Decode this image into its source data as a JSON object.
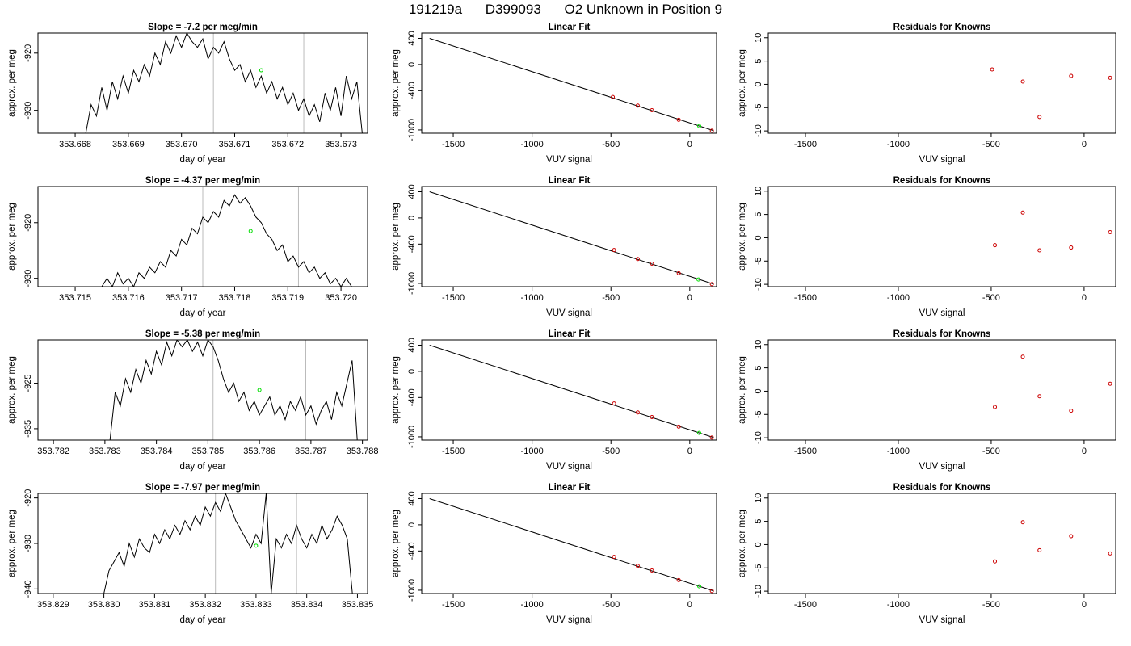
{
  "header": {
    "run_id": "191219a",
    "sample_id": "D399093",
    "description": "O2 Unknown in Position  9"
  },
  "colors": {
    "line": "#000000",
    "marker_known": "#cc0000",
    "marker_unknown": "#00dd00",
    "vline": "#bbbbbb",
    "axis": "#000000"
  },
  "chart_data": [
    {
      "type": "line",
      "title": "Slope =  -7.2  per meg/min",
      "xlabel": "day of year",
      "ylabel": "approx. per meg",
      "xlim": [
        353.6673,
        353.6735
      ],
      "ylim": [
        -934,
        -916.5
      ],
      "xticks": [
        353.668,
        353.669,
        353.67,
        353.671,
        353.672,
        353.673
      ],
      "xtick_labels": [
        "353.668",
        "353.669",
        "353.670",
        "353.671",
        "353.672",
        "353.673"
      ],
      "yticks": [
        -930,
        -920
      ],
      "ytick_labels": [
        "-930",
        "-920"
      ],
      "vlines": [
        353.6706,
        353.6723
      ],
      "x": [
        353.6682,
        353.6683,
        353.6684,
        353.6685,
        353.6686,
        353.6687,
        353.6688,
        353.6689,
        353.669,
        353.6691,
        353.6692,
        353.6693,
        353.6694,
        353.6695,
        353.6696,
        353.6697,
        353.6698,
        353.6699,
        353.67,
        353.6701,
        353.6702,
        353.6703,
        353.6704,
        353.6705,
        353.6706,
        353.6707,
        353.6708,
        353.6709,
        353.671,
        353.6711,
        353.6712,
        353.6713,
        353.6714,
        353.6715,
        353.6716,
        353.6717,
        353.6718,
        353.6719,
        353.672,
        353.6721,
        353.6722,
        353.6723,
        353.6724,
        353.6725,
        353.6726,
        353.6727,
        353.6728,
        353.6729,
        353.673,
        353.6731,
        353.6732,
        353.6733,
        353.6734
      ],
      "y": [
        -934,
        -929,
        -931,
        -926,
        -930,
        -925,
        -928,
        -924,
        -927,
        -923,
        -925,
        -922,
        -924,
        -920,
        -922,
        -918,
        -920,
        -917,
        -919,
        -916.5,
        -918,
        -919,
        -917.5,
        -921,
        -919,
        -920,
        -918,
        -921,
        -923,
        -922,
        -925,
        -923,
        -926,
        -924,
        -927,
        -925,
        -928,
        -926,
        -929,
        -927,
        -930,
        -928,
        -931,
        -929,
        -932,
        -927,
        -930,
        -926,
        -931,
        -924,
        -928,
        -925,
        -934
      ],
      "unknown_point": {
        "x": 353.6715,
        "y": -923
      }
    },
    {
      "type": "line",
      "title": "Linear Fit",
      "xlabel": "VUV signal",
      "ylabel": "approx. per meg",
      "xlim": [
        -1700,
        170
      ],
      "ylim": [
        -1050,
        480
      ],
      "xticks": [
        -1500,
        -1000,
        -500,
        0
      ],
      "xtick_labels": [
        "-1500",
        "-1000",
        "-500",
        "0"
      ],
      "yticks": [
        400,
        0,
        -400,
        -1000
      ],
      "ytick_labels": [
        "400",
        "0",
        "-400",
        "-1000"
      ],
      "fit_line": {
        "x": [
          -1650,
          150
        ],
        "y": [
          400,
          -1010
        ]
      },
      "known_points": {
        "x": [
          -488,
          -330,
          -240,
          -70,
          140
        ],
        "y": [
          -497,
          -628,
          -698,
          -845,
          -1011
        ]
      },
      "unknown_point": {
        "x": 60,
        "y": -940
      }
    },
    {
      "type": "scatter",
      "title": "Residuals for Knowns",
      "xlabel": "VUV signal",
      "ylabel": "approx. per meg",
      "xlim": [
        -1700,
        170
      ],
      "ylim": [
        -10.5,
        11
      ],
      "xticks": [
        -1500,
        -1000,
        -500,
        0
      ],
      "xtick_labels": [
        "-1500",
        "-1000",
        "-500",
        "0"
      ],
      "yticks": [
        10,
        5,
        0,
        -5,
        -10
      ],
      "ytick_labels": [
        "10",
        "5",
        "0",
        "-5",
        "-10"
      ],
      "x": [
        -495,
        -330,
        -240,
        -70,
        140
      ],
      "y": [
        3.2,
        0.6,
        -7.0,
        1.8,
        1.4
      ]
    },
    {
      "type": "line",
      "title": "Slope =  -4.37  per meg/min",
      "xlabel": "day of year",
      "ylabel": "approx. per meg",
      "xlim": [
        353.7143,
        353.7205
      ],
      "ylim": [
        -931.5,
        -913.5
      ],
      "xticks": [
        353.715,
        353.716,
        353.717,
        353.718,
        353.719,
        353.72
      ],
      "xtick_labels": [
        "353.715",
        "353.716",
        "353.717",
        "353.718",
        "353.719",
        "353.720"
      ],
      "yticks": [
        -930,
        -920
      ],
      "ytick_labels": [
        "-930",
        "-920"
      ],
      "vlines": [
        353.7174,
        353.7192
      ],
      "x": [
        353.7155,
        353.7156,
        353.7157,
        353.7158,
        353.7159,
        353.716,
        353.7161,
        353.7162,
        353.7163,
        353.7164,
        353.7165,
        353.7166,
        353.7167,
        353.7168,
        353.7169,
        353.717,
        353.7171,
        353.7172,
        353.7173,
        353.7174,
        353.7175,
        353.7176,
        353.7177,
        353.7178,
        353.7179,
        353.718,
        353.7181,
        353.7182,
        353.7183,
        353.7184,
        353.7185,
        353.7186,
        353.7187,
        353.7188,
        353.7189,
        353.719,
        353.7191,
        353.7192,
        353.7193,
        353.7194,
        353.7195,
        353.7196,
        353.7197,
        353.7198,
        353.7199,
        353.72,
        353.7201,
        353.7202
      ],
      "y": [
        -931.5,
        -930,
        -931.5,
        -929,
        -931,
        -930,
        -931.5,
        -929,
        -930,
        -928,
        -929,
        -927,
        -928,
        -925,
        -926,
        -923,
        -924,
        -921,
        -922,
        -919,
        -920,
        -918,
        -919,
        -916,
        -917,
        -915,
        -916.5,
        -915.5,
        -917,
        -919,
        -920,
        -922,
        -923,
        -925,
        -924,
        -927,
        -926,
        -928,
        -927,
        -929,
        -928,
        -930,
        -929,
        -931,
        -930,
        -931.5,
        -930,
        -931.5
      ],
      "unknown_point": {
        "x": 353.7183,
        "y": -921.5
      }
    },
    {
      "type": "line",
      "title": "Linear Fit",
      "xlabel": "VUV signal",
      "ylabel": "approx. per meg",
      "xlim": [
        -1700,
        170
      ],
      "ylim": [
        -1050,
        480
      ],
      "xticks": [
        -1500,
        -1000,
        -500,
        0
      ],
      "xtick_labels": [
        "-1500",
        "-1000",
        "-500",
        "0"
      ],
      "yticks": [
        400,
        0,
        -400,
        -1000
      ],
      "ytick_labels": [
        "400",
        "0",
        "-400",
        "-1000"
      ],
      "fit_line": {
        "x": [
          -1650,
          150
        ],
        "y": [
          400,
          -1010
        ]
      },
      "known_points": {
        "x": [
          -480,
          -330,
          -240,
          -70,
          140
        ],
        "y": [
          -490,
          -628,
          -698,
          -845,
          -1011
        ]
      },
      "unknown_point": {
        "x": 55,
        "y": -940
      }
    },
    {
      "type": "scatter",
      "title": "Residuals for Knowns",
      "xlabel": "VUV signal",
      "ylabel": "approx. per meg",
      "xlim": [
        -1700,
        170
      ],
      "ylim": [
        -10.5,
        11
      ],
      "xticks": [
        -1500,
        -1000,
        -500,
        0
      ],
      "xtick_labels": [
        "-1500",
        "-1000",
        "-500",
        "0"
      ],
      "yticks": [
        10,
        5,
        0,
        -5,
        -10
      ],
      "ytick_labels": [
        "10",
        "5",
        "0",
        "-5",
        "-10"
      ],
      "x": [
        -480,
        -330,
        -240,
        -70,
        140
      ],
      "y": [
        -1.6,
        5.4,
        -2.7,
        -2.1,
        1.2
      ]
    },
    {
      "type": "line",
      "title": "Slope =  -5.38  per meg/min",
      "xlabel": "day of year",
      "ylabel": "approx. per meg",
      "xlim": [
        353.7817,
        353.7881
      ],
      "ylim": [
        -937.5,
        -915.5
      ],
      "xticks": [
        353.782,
        353.783,
        353.784,
        353.785,
        353.786,
        353.787,
        353.788
      ],
      "xtick_labels": [
        "353.782",
        "353.783",
        "353.784",
        "353.785",
        "353.786",
        "353.787",
        "353.788"
      ],
      "yticks": [
        -935,
        -925
      ],
      "ytick_labels": [
        "-935",
        "-925"
      ],
      "vlines": [
        353.7851,
        353.7869
      ],
      "x": [
        353.7831,
        353.7832,
        353.7833,
        353.7834,
        353.7835,
        353.7836,
        353.7837,
        353.7838,
        353.7839,
        353.784,
        353.7841,
        353.7842,
        353.7843,
        353.7844,
        353.7845,
        353.7846,
        353.7847,
        353.7848,
        353.7849,
        353.785,
        353.7851,
        353.7852,
        353.7853,
        353.7854,
        353.7855,
        353.7856,
        353.7857,
        353.7858,
        353.7859,
        353.786,
        353.7861,
        353.7862,
        353.7863,
        353.7864,
        353.7865,
        353.7866,
        353.7867,
        353.7868,
        353.7869,
        353.787,
        353.7871,
        353.7872,
        353.7873,
        353.7874,
        353.7875,
        353.7876,
        353.7877,
        353.7878,
        353.7879
      ],
      "y": [
        -937.5,
        -927,
        -930,
        -924,
        -927,
        -922,
        -925,
        -920,
        -923,
        -918,
        -921,
        -916,
        -919,
        -915.5,
        -917,
        -915.5,
        -918,
        -916,
        -919,
        -915.5,
        -917,
        -920,
        -924,
        -927,
        -925,
        -929,
        -927,
        -931,
        -929,
        -932,
        -930,
        -928,
        -932,
        -930,
        -933,
        -929,
        -931,
        -928,
        -932,
        -930,
        -934,
        -931,
        -929,
        -933,
        -927,
        -930,
        -925,
        -920,
        -937.5
      ],
      "unknown_point": {
        "x": 353.786,
        "y": -926.5
      }
    },
    {
      "type": "line",
      "title": "Linear Fit",
      "xlabel": "VUV signal",
      "ylabel": "approx. per meg",
      "xlim": [
        -1700,
        170
      ],
      "ylim": [
        -1050,
        480
      ],
      "xticks": [
        -1500,
        -1000,
        -500,
        0
      ],
      "xtick_labels": [
        "-1500",
        "-1000",
        "-500",
        "0"
      ],
      "yticks": [
        400,
        0,
        -400,
        -1000
      ],
      "ytick_labels": [
        "400",
        "0",
        "-400",
        "-1000"
      ],
      "fit_line": {
        "x": [
          -1650,
          150
        ],
        "y": [
          400,
          -1010
        ]
      },
      "known_points": {
        "x": [
          -480,
          -330,
          -240,
          -70,
          140
        ],
        "y": [
          -490,
          -628,
          -698,
          -845,
          -1011
        ]
      },
      "unknown_point": {
        "x": 60,
        "y": -940
      }
    },
    {
      "type": "scatter",
      "title": "Residuals for Knowns",
      "xlabel": "VUV signal",
      "ylabel": "approx. per meg",
      "xlim": [
        -1700,
        170
      ],
      "ylim": [
        -10.5,
        11
      ],
      "xticks": [
        -1500,
        -1000,
        -500,
        0
      ],
      "xtick_labels": [
        "-1500",
        "-1000",
        "-500",
        "0"
      ],
      "yticks": [
        10,
        5,
        0,
        -5,
        -10
      ],
      "ytick_labels": [
        "10",
        "5",
        "0",
        "-5",
        "-10"
      ],
      "x": [
        -480,
        -330,
        -240,
        -70,
        140
      ],
      "y": [
        -3.4,
        7.4,
        -1.1,
        -4.2,
        1.6
      ]
    },
    {
      "type": "line",
      "title": "Slope =  -7.97  per meg/min",
      "xlabel": "day of year",
      "ylabel": "approx. per meg",
      "xlim": [
        353.8287,
        353.8352
      ],
      "ylim": [
        -941,
        -919
      ],
      "xticks": [
        353.829,
        353.83,
        353.831,
        353.832,
        353.833,
        353.834,
        353.835
      ],
      "xtick_labels": [
        "353.829",
        "353.830",
        "353.831",
        "353.832",
        "353.833",
        "353.834",
        "353.835"
      ],
      "yticks": [
        -940,
        -930,
        -920
      ],
      "ytick_labels": [
        "-940",
        "-930",
        "-920"
      ],
      "vlines": [
        353.8322,
        353.8338
      ],
      "x": [
        353.83,
        353.8301,
        353.8302,
        353.8303,
        353.8304,
        353.8305,
        353.8306,
        353.8307,
        353.8308,
        353.8309,
        353.831,
        353.8311,
        353.8312,
        353.8313,
        353.8314,
        353.8315,
        353.8316,
        353.8317,
        353.8318,
        353.8319,
        353.832,
        353.8321,
        353.8322,
        353.8323,
        353.8324,
        353.8325,
        353.8326,
        353.8327,
        353.8328,
        353.8329,
        353.833,
        353.8331,
        353.8332,
        353.8333,
        353.8334,
        353.8335,
        353.8336,
        353.8337,
        353.8338,
        353.8339,
        353.834,
        353.8341,
        353.8342,
        353.8343,
        353.8344,
        353.8345,
        353.8346,
        353.8347,
        353.8348,
        353.8349
      ],
      "y": [
        -941,
        -936,
        -934,
        -932,
        -935,
        -930,
        -933,
        -929,
        -931,
        -932,
        -928,
        -930,
        -927,
        -929,
        -926,
        -928,
        -925,
        -927,
        -924,
        -926,
        -922,
        -924,
        -921,
        -923,
        -919,
        -922,
        -925,
        -927,
        -929,
        -931,
        -928,
        -930,
        -919,
        -941,
        -929,
        -931,
        -928,
        -930,
        -926,
        -929,
        -931,
        -928,
        -930,
        -926,
        -929,
        -927,
        -924,
        -926,
        -929,
        -941
      ],
      "unknown_point": {
        "x": 353.833,
        "y": -930.5
      }
    },
    {
      "type": "line",
      "title": "Linear Fit",
      "xlabel": "VUV signal",
      "ylabel": "approx. per meg",
      "xlim": [
        -1700,
        170
      ],
      "ylim": [
        -1050,
        480
      ],
      "xticks": [
        -1500,
        -1000,
        -500,
        0
      ],
      "xtick_labels": [
        "-1500",
        "-1000",
        "-500",
        "0"
      ],
      "yticks": [
        400,
        0,
        -400,
        -1000
      ],
      "ytick_labels": [
        "400",
        "0",
        "-400",
        "-1000"
      ],
      "fit_line": {
        "x": [
          -1650,
          150
        ],
        "y": [
          400,
          -1010
        ]
      },
      "known_points": {
        "x": [
          -480,
          -330,
          -240,
          -70,
          140
        ],
        "y": [
          -490,
          -628,
          -698,
          -845,
          -1011
        ]
      },
      "unknown_point": {
        "x": 60,
        "y": -940
      }
    },
    {
      "type": "scatter",
      "title": "Residuals for Knowns",
      "xlabel": "VUV signal",
      "ylabel": "approx. per meg",
      "xlim": [
        -1700,
        170
      ],
      "ylim": [
        -10.5,
        11
      ],
      "xticks": [
        -1500,
        -1000,
        -500,
        0
      ],
      "xtick_labels": [
        "-1500",
        "-1000",
        "-500",
        "0"
      ],
      "yticks": [
        10,
        5,
        0,
        -5,
        -10
      ],
      "ytick_labels": [
        "10",
        "5",
        "0",
        "-5",
        "-10"
      ],
      "x": [
        -480,
        -330,
        -240,
        -70,
        140
      ],
      "y": [
        -3.6,
        4.8,
        -1.2,
        1.8,
        -1.9
      ]
    }
  ]
}
